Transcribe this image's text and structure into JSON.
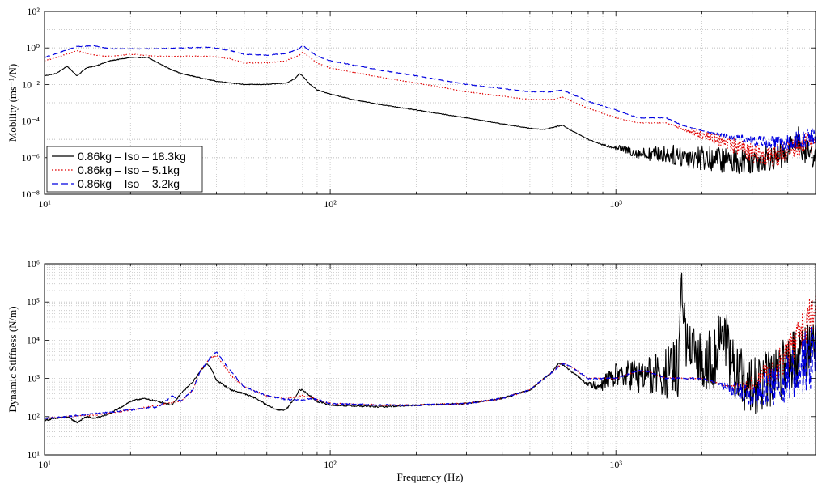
{
  "chart_data": [
    {
      "type": "line",
      "title": "",
      "xlabel": "",
      "ylabel": "Mobility (ms⁻¹/N)",
      "xscale": "log",
      "yscale": "log",
      "xlim": [
        10,
        5000
      ],
      "ylim": [
        1e-08,
        100
      ],
      "grid": true,
      "legend_position": "bottom-left",
      "x_ticks": [
        {
          "value": 10,
          "label": "10¹"
        },
        {
          "value": 100,
          "label": "10²"
        },
        {
          "value": 1000,
          "label": "10³"
        }
      ],
      "y_ticks": [
        {
          "value": 1e-08,
          "label": "10⁻⁸"
        },
        {
          "value": 1e-06,
          "label": "10⁻⁶"
        },
        {
          "value": 0.0001,
          "label": "10⁻⁴"
        },
        {
          "value": 0.01,
          "label": "10⁻²"
        },
        {
          "value": 1,
          "label": "10⁰"
        },
        {
          "value": 100,
          "label": "10²"
        }
      ],
      "series": [
        {
          "name": "0.86kg – Iso – 18.3kg",
          "color": "#000000",
          "dash": "solid",
          "x": [
            10,
            11,
            12,
            13,
            14,
            15,
            17,
            20,
            23,
            25,
            27,
            30,
            40,
            50,
            60,
            70,
            75,
            78,
            80,
            85,
            90,
            100,
            120,
            150,
            200,
            300,
            400,
            500,
            560,
            620,
            650,
            700,
            800,
            900,
            1000,
            1200,
            1500,
            2000,
            2500,
            3000,
            3500,
            4000,
            4300,
            4500,
            5000
          ],
          "y": [
            0.03,
            0.04,
            0.1,
            0.03,
            0.08,
            0.1,
            0.2,
            0.3,
            0.3,
            0.15,
            0.08,
            0.04,
            0.015,
            0.01,
            0.01,
            0.012,
            0.02,
            0.04,
            0.03,
            0.01,
            0.005,
            0.003,
            0.0015,
            0.0008,
            0.0004,
            0.00015,
            7e-05,
            4e-05,
            3.5e-05,
            5e-05,
            6e-05,
            3e-05,
            1e-05,
            5e-06,
            4e-06,
            2e-06,
            2e-06,
            1.5e-06,
            1e-06,
            1e-06,
            1.5e-06,
            2e-06,
            3e-05,
            3e-06,
            2e-06
          ],
          "noise_from": 850,
          "noise_amp": 0.7
        },
        {
          "name": "0.86kg – Iso – 5.1kg",
          "color": "#e00000",
          "dash": "dotted",
          "x": [
            10,
            11,
            13,
            15,
            17,
            20,
            25,
            30,
            38,
            45,
            50,
            60,
            70,
            78,
            80,
            85,
            90,
            100,
            150,
            200,
            300,
            500,
            600,
            650,
            700,
            800,
            1000,
            1200,
            1400,
            1500,
            1700,
            2000,
            2500,
            3000,
            3500,
            4000,
            4500,
            5000
          ],
          "y": [
            0.2,
            0.3,
            0.7,
            0.4,
            0.35,
            0.45,
            0.35,
            0.35,
            0.35,
            0.25,
            0.15,
            0.15,
            0.2,
            0.4,
            0.6,
            0.3,
            0.15,
            0.08,
            0.025,
            0.012,
            0.004,
            0.0015,
            0.0015,
            0.002,
            0.0012,
            0.0005,
            0.00015,
            8e-05,
            8e-05,
            8e-05,
            4e-05,
            2e-05,
            8e-06,
            2e-06,
            1.5e-06,
            3e-06,
            8e-06,
            1e-05
          ],
          "noise_from": 1500,
          "noise_amp": 0.65
        },
        {
          "name": "0.86kg – Iso – 3.2kg",
          "color": "#0000e0",
          "dash": "dashed",
          "x": [
            10,
            11,
            13,
            15,
            17,
            20,
            25,
            30,
            38,
            45,
            50,
            60,
            70,
            78,
            80,
            85,
            90,
            100,
            150,
            200,
            300,
            500,
            600,
            650,
            700,
            800,
            1000,
            1200,
            1400,
            1500,
            1700,
            2000,
            2500,
            3000,
            3500,
            4000,
            4500,
            5000
          ],
          "y": [
            0.3,
            0.5,
            1.2,
            1.3,
            0.9,
            0.9,
            0.9,
            1.0,
            1.1,
            0.7,
            0.45,
            0.4,
            0.5,
            0.9,
            1.4,
            0.7,
            0.35,
            0.2,
            0.06,
            0.03,
            0.01,
            0.004,
            0.004,
            0.005,
            0.003,
            0.0012,
            0.0004,
            0.00015,
            0.00015,
            0.00015,
            6e-05,
            3e-05,
            1.5e-05,
            1e-05,
            8e-06,
            8e-06,
            1.5e-05,
            2e-05
          ],
          "noise_from": 2000,
          "noise_amp": 0.5
        }
      ]
    },
    {
      "type": "line",
      "title": "",
      "xlabel": "Frequency (Hz)",
      "ylabel": "Dynamic Stiffness (N/m)",
      "xscale": "log",
      "yscale": "log",
      "xlim": [
        10,
        5000
      ],
      "ylim": [
        10,
        1000000
      ],
      "grid": true,
      "x_ticks": [
        {
          "value": 10,
          "label": "10¹"
        },
        {
          "value": 100,
          "label": "10²"
        },
        {
          "value": 1000,
          "label": "10³"
        }
      ],
      "y_ticks": [
        {
          "value": 10,
          "label": "10¹"
        },
        {
          "value": 100,
          "label": "10²"
        },
        {
          "value": 1000,
          "label": "10³"
        },
        {
          "value": 10000,
          "label": "10⁴"
        },
        {
          "value": 100000,
          "label": "10⁵"
        },
        {
          "value": 1000000,
          "label": "10⁶"
        }
      ],
      "series": [
        {
          "name": "0.86kg – Iso – 18.3kg",
          "color": "#000000",
          "dash": "solid",
          "x": [
            10,
            11,
            12,
            13,
            14,
            15,
            17,
            20,
            22,
            25,
            28,
            30,
            33,
            35,
            37,
            38,
            40,
            45,
            50,
            55,
            60,
            65,
            70,
            75,
            78,
            80,
            85,
            90,
            100,
            150,
            200,
            300,
            400,
            500,
            600,
            630,
            650,
            700,
            800,
            900,
            1000,
            1200,
            1300,
            1500,
            1650,
            1700,
            1750,
            1800,
            2000,
            2200,
            2400,
            2500,
            2600,
            3000,
            3500,
            4000,
            4500,
            5000
          ],
          "y": [
            80,
            90,
            100,
            70,
            100,
            90,
            120,
            250,
            300,
            250,
            200,
            400,
            800,
            1500,
            2500,
            2000,
            900,
            500,
            400,
            300,
            200,
            150,
            150,
            300,
            500,
            500,
            350,
            250,
            200,
            180,
            200,
            220,
            300,
            500,
            1500,
            2500,
            2300,
            1500,
            700,
            800,
            1500,
            1500,
            1500,
            1800,
            3000,
            300000,
            20000,
            6000,
            5000,
            5000,
            40000,
            3000,
            2500,
            800,
            1500,
            4000,
            8000,
            15000
          ],
          "noise_from": 750,
          "noise_amp": 0.8
        },
        {
          "name": "0.86kg – Iso – 5.1kg",
          "color": "#e00000",
          "dash": "dotted",
          "x": [
            10,
            12,
            15,
            20,
            25,
            30,
            33,
            35,
            38,
            40,
            42,
            45,
            50,
            60,
            70,
            80,
            85,
            90,
            100,
            150,
            200,
            300,
            400,
            500,
            600,
            650,
            700,
            800,
            1000,
            1200,
            1300,
            1500,
            2000,
            2500,
            3000,
            3500,
            4000,
            4500,
            5000
          ],
          "y": [
            90,
            100,
            110,
            150,
            200,
            250,
            500,
            1500,
            3500,
            4000,
            2500,
            1200,
            600,
            350,
            300,
            350,
            330,
            280,
            220,
            200,
            200,
            220,
            300,
            500,
            1500,
            2500,
            2000,
            1000,
            1000,
            1600,
            1500,
            1000,
            1000,
            600,
            800,
            2000,
            5000,
            30000,
            80000
          ],
          "noise_from": 2400,
          "noise_amp": 0.7
        },
        {
          "name": "0.86kg – Iso – 3.2kg",
          "color": "#0000e0",
          "dash": "dashed",
          "x": [
            10,
            12,
            15,
            20,
            25,
            28,
            30,
            33,
            35,
            38,
            40,
            42,
            45,
            50,
            60,
            70,
            80,
            85,
            90,
            100,
            150,
            200,
            300,
            400,
            500,
            600,
            650,
            700,
            800,
            1000,
            1200,
            1300,
            1500,
            2000,
            2500,
            3000,
            3500,
            4000,
            4500,
            5000
          ],
          "y": [
            90,
            100,
            120,
            150,
            180,
            350,
            250,
            500,
            1500,
            3500,
            5000,
            3000,
            1500,
            600,
            350,
            280,
            270,
            300,
            280,
            220,
            200,
            200,
            220,
            300,
            500,
            1500,
            2500,
            2000,
            1000,
            1000,
            1600,
            1500,
            1000,
            1000,
            600,
            500,
            800,
            1500,
            4000,
            8000
          ],
          "noise_from": 2200,
          "noise_amp": 0.9
        }
      ]
    }
  ]
}
